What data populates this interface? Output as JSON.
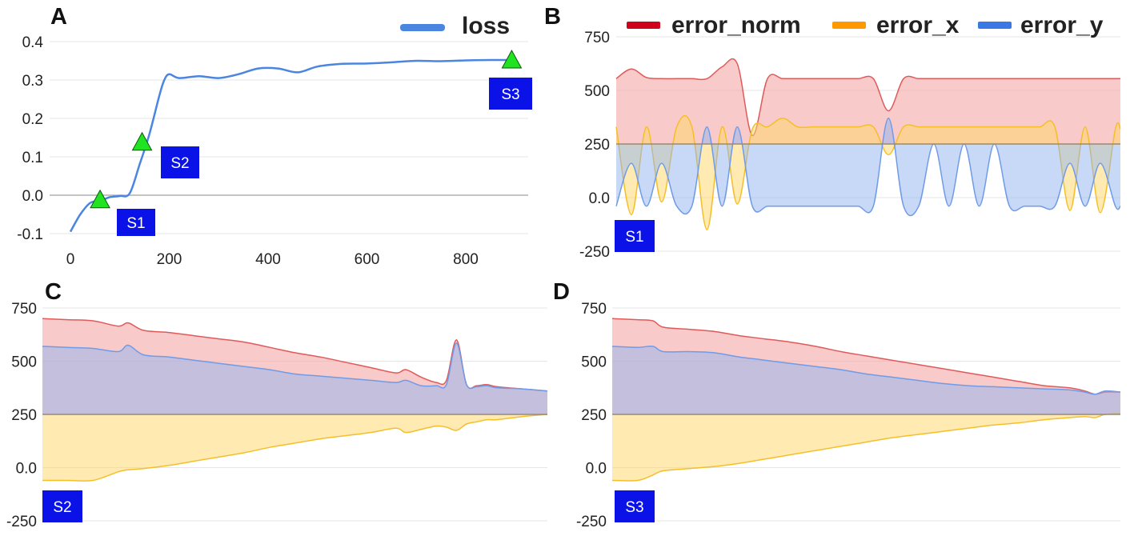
{
  "colors": {
    "loss": "#4a86e0",
    "error_norm": "#d0021b",
    "error_x": "#ff9900",
    "error_y": "#3b78e7",
    "label_box": "#0a12e8",
    "marker": "#22e322"
  },
  "chart_data": [
    {
      "panel": "A",
      "type": "line",
      "xlim": [
        0,
        900
      ],
      "ylim": [
        -0.1,
        0.4
      ],
      "xticks": [
        "0",
        "200",
        "400",
        "600",
        "800"
      ],
      "yticks": [
        "0.4",
        "0.3",
        "0.2",
        "0.1",
        "0.0",
        "-0.1"
      ],
      "xtick_values": [
        0,
        200,
        400,
        600,
        800
      ],
      "ytick_values": [
        0.4,
        0.3,
        0.2,
        0.1,
        0.0,
        -0.1
      ],
      "legend": {
        "position": "top-right",
        "entries": [
          "loss"
        ]
      },
      "series": [
        {
          "name": "loss",
          "x": [
            0,
            20,
            40,
            60,
            80,
            100,
            120,
            140,
            160,
            180,
            190,
            200,
            220,
            260,
            300,
            340,
            380,
            420,
            460,
            500,
            550,
            600,
            650,
            700,
            750,
            800,
            850,
            890
          ],
          "y": [
            -0.095,
            -0.05,
            -0.02,
            -0.015,
            -0.005,
            -0.002,
            0.005,
            0.08,
            0.16,
            0.26,
            0.3,
            0.315,
            0.305,
            0.31,
            0.305,
            0.315,
            0.33,
            0.33,
            0.32,
            0.335,
            0.342,
            0.343,
            0.346,
            0.35,
            0.349,
            0.351,
            0.352,
            0.352
          ]
        }
      ],
      "markers": [
        {
          "label": "S1",
          "x": 60,
          "y": -0.012
        },
        {
          "label": "S2",
          "x": 145,
          "y": 0.138
        },
        {
          "label": "S3",
          "x": 893,
          "y": 0.352
        }
      ]
    },
    {
      "panel": "B",
      "type": "area",
      "ylim": [
        -250,
        750
      ],
      "yticks": [
        "750",
        "500",
        "250",
        "0.0",
        "-250"
      ],
      "ytick_values": [
        750,
        500,
        250,
        0,
        -250
      ],
      "baseline": 250,
      "legend": {
        "position": "top",
        "entries": [
          "error_norm",
          "error_x",
          "error_y"
        ]
      },
      "box": "S1",
      "x": [
        0,
        3,
        6,
        9,
        12,
        15,
        18,
        21,
        24,
        27,
        30,
        33,
        36,
        39,
        42,
        45,
        48,
        51,
        54,
        57,
        60,
        63,
        66,
        69,
        72,
        75,
        78,
        81,
        84,
        87,
        90,
        93,
        96,
        99,
        100
      ],
      "series": [
        {
          "name": "error_norm",
          "values": [
            555,
            600,
            560,
            555,
            555,
            555,
            555,
            610,
            625,
            290,
            555,
            555,
            555,
            555,
            555,
            555,
            555,
            555,
            405,
            555,
            555,
            555,
            555,
            555,
            555,
            555,
            555,
            555,
            555,
            555,
            555,
            555,
            555,
            555,
            555
          ]
        },
        {
          "name": "error_x",
          "values": [
            330,
            -80,
            330,
            -20,
            330,
            330,
            -150,
            330,
            -30,
            320,
            330,
            370,
            330,
            330,
            330,
            330,
            330,
            330,
            200,
            330,
            330,
            330,
            330,
            330,
            330,
            330,
            330,
            330,
            330,
            330,
            -60,
            330,
            -70,
            320,
            320
          ]
        },
        {
          "name": "error_y",
          "values": [
            -40,
            160,
            -40,
            160,
            -40,
            -40,
            330,
            -40,
            330,
            -40,
            -40,
            -40,
            -40,
            -40,
            -40,
            -40,
            -40,
            -40,
            370,
            -40,
            -40,
            250,
            -40,
            250,
            -40,
            250,
            -40,
            -40,
            -40,
            -40,
            160,
            -40,
            160,
            -40,
            -40
          ]
        }
      ]
    },
    {
      "panel": "C",
      "type": "area",
      "ylim": [
        -250,
        750
      ],
      "yticks": [
        "750",
        "500",
        "250",
        "0.0",
        "-250"
      ],
      "ytick_values": [
        750,
        500,
        250,
        0,
        -250
      ],
      "baseline": 250,
      "box": "S2",
      "x": [
        0,
        5,
        10,
        15,
        17,
        20,
        25,
        30,
        35,
        40,
        45,
        50,
        55,
        60,
        65,
        70,
        72,
        75,
        78,
        80,
        82,
        84,
        86,
        88,
        90,
        95,
        100
      ],
      "series": [
        {
          "name": "error_norm",
          "values": [
            700,
            695,
            690,
            665,
            680,
            645,
            635,
            620,
            605,
            590,
            565,
            540,
            520,
            495,
            470,
            445,
            460,
            425,
            400,
            410,
            600,
            390,
            385,
            390,
            380,
            370,
            360
          ]
        },
        {
          "name": "error_x",
          "values": [
            -60,
            -60,
            -60,
            -20,
            -10,
            -5,
            10,
            30,
            50,
            70,
            95,
            115,
            135,
            150,
            165,
            185,
            165,
            180,
            195,
            190,
            175,
            205,
            215,
            225,
            225,
            240,
            250
          ]
        },
        {
          "name": "error_y",
          "values": [
            570,
            565,
            560,
            545,
            575,
            530,
            520,
            505,
            490,
            475,
            460,
            440,
            430,
            420,
            410,
            400,
            410,
            385,
            385,
            390,
            585,
            390,
            380,
            385,
            375,
            370,
            360
          ]
        }
      ]
    },
    {
      "panel": "D",
      "type": "area",
      "ylim": [
        -250,
        750
      ],
      "yticks": [
        "750",
        "500",
        "250",
        "0.0",
        "-250"
      ],
      "ytick_values": [
        750,
        500,
        250,
        0,
        -250
      ],
      "baseline": 250,
      "box": "S3",
      "x": [
        0,
        5,
        8,
        10,
        15,
        20,
        25,
        30,
        35,
        40,
        45,
        50,
        55,
        60,
        65,
        70,
        75,
        80,
        85,
        90,
        93,
        95,
        97,
        100
      ],
      "series": [
        {
          "name": "error_norm",
          "values": [
            700,
            695,
            690,
            660,
            650,
            640,
            620,
            605,
            590,
            570,
            545,
            525,
            505,
            485,
            465,
            445,
            425,
            405,
            385,
            375,
            360,
            345,
            355,
            355
          ]
        },
        {
          "name": "error_x",
          "values": [
            -60,
            -60,
            -35,
            -15,
            -5,
            5,
            20,
            40,
            60,
            80,
            100,
            120,
            140,
            155,
            170,
            185,
            200,
            210,
            225,
            235,
            240,
            235,
            250,
            255
          ]
        },
        {
          "name": "error_y",
          "values": [
            570,
            565,
            570,
            545,
            545,
            540,
            520,
            505,
            490,
            475,
            460,
            440,
            425,
            410,
            395,
            385,
            380,
            375,
            370,
            365,
            355,
            345,
            360,
            355
          ]
        }
      ]
    }
  ]
}
